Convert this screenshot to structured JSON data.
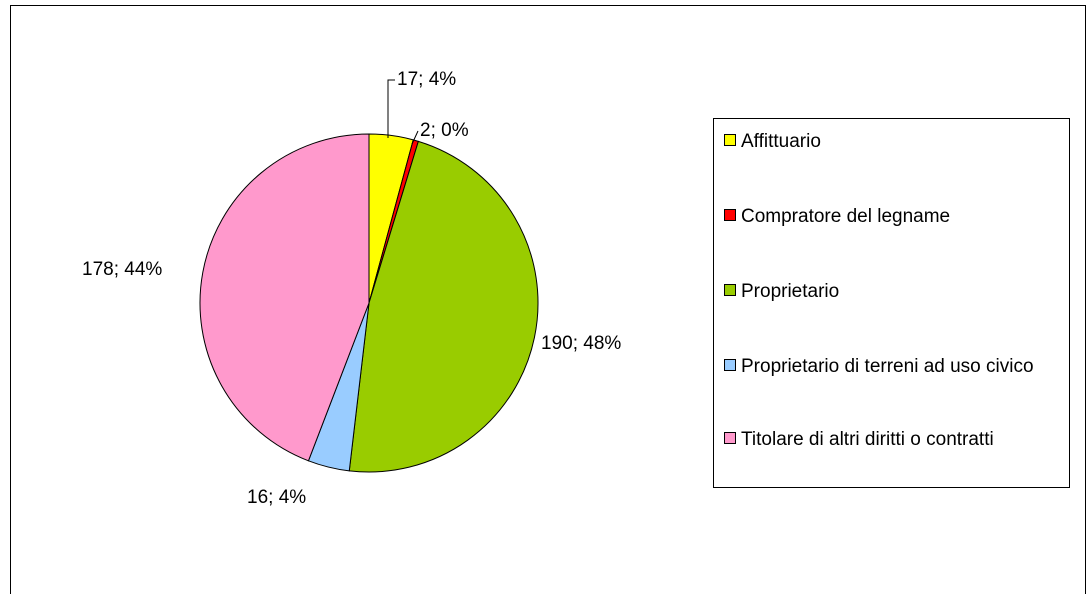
{
  "chart_data": {
    "type": "pie",
    "categories": [
      "Affittuario",
      "Compratore del legname",
      "Proprietario",
      "Proprietario di terreni ad uso civico",
      "Titolare di altri diritti o contratti"
    ],
    "values": [
      17,
      2,
      190,
      16,
      178
    ],
    "value_labels": [
      "17; 4%",
      "2; 0%",
      "190; 48%",
      "16; 4%",
      "178; 44%"
    ],
    "colors": [
      "#ffff00",
      "#ff0000",
      "#99cc00",
      "#99ccff",
      "#ff99cc"
    ],
    "legend": "right"
  }
}
